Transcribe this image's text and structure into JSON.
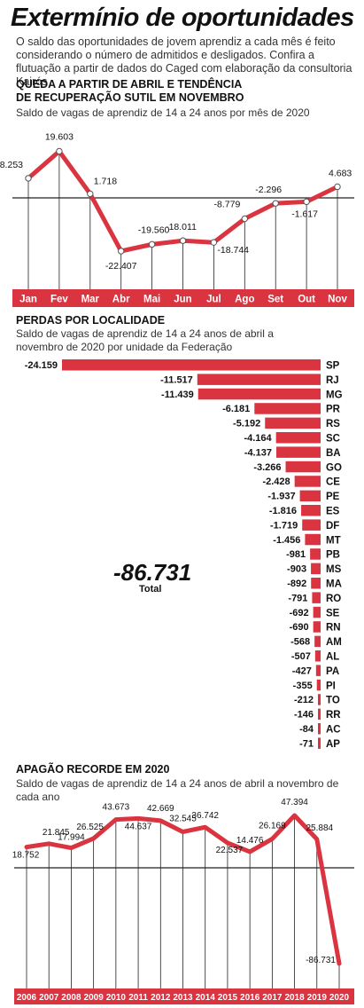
{
  "header": {
    "title": "Extermínio de oportunidades",
    "intro": "O saldo das oportunidades de jovem aprendiz a cada mês é feito considerando o número de admitidos e desligados. Confira a flutuação a partir de dados do Caged com elaboração da consultoria Kairós"
  },
  "colors": {
    "accent": "#d9343f",
    "text": "#1a1a1a",
    "axis": "#222222"
  },
  "sections": {
    "monthly": {
      "title_line1": "QUEDA A PARTIR DE ABRIL E TENDÊNCIA",
      "title_line2": "DE RECUPERAÇÃO SUTIL EM NOVEMBRO",
      "subtitle": "Saldo de vagas de aprendiz de 14 a 24 anos por mês de 2020"
    },
    "states": {
      "title": "PERDAS POR LOCALIDADE",
      "subtitle_line1": "Saldo de vagas de aprendiz de 14 a 24 anos de abril a",
      "subtitle_line2": "novembro de 2020  por unidade da Federação",
      "total_value": "-86.731",
      "total_label": "Total"
    },
    "annual": {
      "title": "APAGÃO RECORDE EM 2020",
      "subtitle": "Saldo de vagas de aprendiz de 14 a 24 anos de abril a novembro de cada ano"
    }
  },
  "chart_data": [
    {
      "type": "line",
      "categories": [
        "Jan",
        "Fev",
        "Mar",
        "Abr",
        "Mai",
        "Jun",
        "Jul",
        "Ago",
        "Set",
        "Out",
        "Nov"
      ],
      "values": [
        8253,
        19603,
        1718,
        -22407,
        -19560,
        -18011,
        -18744,
        -8779,
        -2296,
        -1617,
        4683
      ],
      "labels": [
        "8.253",
        "19.603",
        "1.718",
        "-22.407",
        "-19.560",
        "-18.011",
        "-18.744",
        "-8.779",
        "-2.296",
        "-1.617",
        "4.683"
      ],
      "title": "QUEDA A PARTIR DE ABRIL E TENDÊNCIA DE RECUPERAÇÃO SUTIL EM NOVEMBRO"
    },
    {
      "type": "bar",
      "orientation": "horizontal",
      "categories": [
        "SP",
        "RJ",
        "MG",
        "PR",
        "RS",
        "SC",
        "BA",
        "GO",
        "CE",
        "PE",
        "ES",
        "DF",
        "MT",
        "PB",
        "MS",
        "MA",
        "RO",
        "SE",
        "RN",
        "AM",
        "AL",
        "PA",
        "PI",
        "TO",
        "RR",
        "AC",
        "AP"
      ],
      "values": [
        -24159,
        -11517,
        -11439,
        -6181,
        -5192,
        -4164,
        -4137,
        -3266,
        -2428,
        -1937,
        -1816,
        -1719,
        -1456,
        -981,
        -903,
        -892,
        -791,
        -692,
        -690,
        -568,
        -507,
        -427,
        -355,
        -212,
        -146,
        -84,
        -71
      ],
      "labels": [
        "-24.159",
        "-11.517",
        "-11.439",
        "-6.181",
        "-5.192",
        "-4.164",
        "-4.137",
        "-3.266",
        "-2.428",
        "-1.937",
        "-1.816",
        "-1.719",
        "-1.456",
        "-981",
        "-903",
        "-892",
        "-791",
        "-692",
        "-690",
        "-568",
        "-507",
        "-427",
        "-355",
        "-212",
        "-146",
        "-84",
        "-71"
      ],
      "title": "PERDAS POR LOCALIDADE"
    },
    {
      "type": "line",
      "categories": [
        "2006",
        "2007",
        "2008",
        "2009",
        "2010",
        "2011",
        "2012",
        "2013",
        "2014",
        "2015",
        "2016",
        "2017",
        "2018",
        "2019",
        "2020"
      ],
      "values": [
        18752,
        21845,
        17994,
        26525,
        43673,
        44637,
        42669,
        32545,
        36742,
        22537,
        14476,
        26169,
        47394,
        25884,
        -86731
      ],
      "labels": [
        "18.752",
        "21.845",
        "17.994",
        "26.525",
        "43.673",
        "44.637",
        "42.669",
        "32.545",
        "36.742",
        "22.537",
        "14.476",
        "26.169",
        "47.394",
        "25.884",
        "-86.731"
      ],
      "title": "APAGÃO RECORDE EM 2020"
    }
  ]
}
